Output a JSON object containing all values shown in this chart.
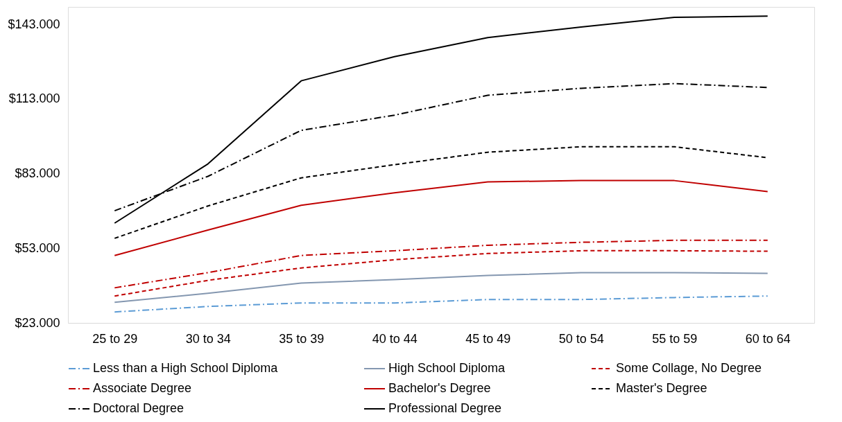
{
  "chart_data": {
    "type": "line",
    "categories": [
      "25 to 29",
      "30 to 34",
      "35 to 39",
      "40 to 44",
      "45 to 49",
      "50 to 54",
      "55 to 59",
      "60 to 64"
    ],
    "ylim": [
      23000,
      150000
    ],
    "yticks": [
      {
        "value": 23000,
        "label": "$23.000"
      },
      {
        "value": 53000,
        "label": "$53.000"
      },
      {
        "value": 83000,
        "label": "$83.000"
      },
      {
        "value": 113000,
        "label": "$113.000"
      },
      {
        "value": 143000,
        "label": "$143.000"
      }
    ],
    "grid": false,
    "legend": "bottom",
    "marker": "none",
    "series": [
      {
        "name": "Less than a High School Diploma",
        "color": "#5b9bd5",
        "line_style": "dashdot",
        "values": [
          27400,
          29600,
          31000,
          31000,
          32400,
          32400,
          33200,
          33800
        ]
      },
      {
        "name": "High School Diploma",
        "color": "#8497b0",
        "line_style": "solid",
        "values": [
          31300,
          34900,
          39000,
          40400,
          42100,
          43200,
          43200,
          42900
        ]
      },
      {
        "name": "Some Collage, No Degree",
        "color": "#c00000",
        "line_style": "dashed",
        "values": [
          33800,
          40100,
          45100,
          48400,
          50900,
          52000,
          52000,
          51800
        ]
      },
      {
        "name": "Associate Degree",
        "color": "#c00000",
        "line_style": "dashdot",
        "values": [
          37100,
          43200,
          50100,
          52000,
          54200,
          55400,
          56200,
          56200
        ]
      },
      {
        "name": "Bachelor's Degree",
        "color": "#c00000",
        "line_style": "solid",
        "values": [
          50100,
          60300,
          70300,
          75300,
          79700,
          80200,
          80200,
          75800
        ]
      },
      {
        "name": "Master's Degree",
        "color": "#000000",
        "line_style": "dashed",
        "values": [
          57000,
          70000,
          81300,
          86600,
          91600,
          93800,
          93800,
          89400
        ]
      },
      {
        "name": "Doctoral Degree",
        "color": "#000000",
        "line_style": "dashdot",
        "values": [
          68100,
          81900,
          100400,
          106500,
          114500,
          117300,
          119200,
          117600
        ]
      },
      {
        "name": "Professional Degree",
        "color": "#000000",
        "line_style": "solid",
        "values": [
          63100,
          86900,
          120300,
          130000,
          137700,
          141900,
          145800,
          146300
        ]
      }
    ]
  }
}
